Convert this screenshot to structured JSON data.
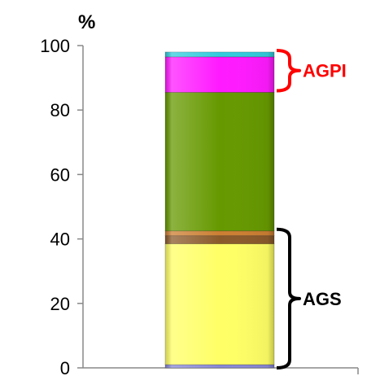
{
  "chart_data": {
    "type": "bar",
    "stacked": true,
    "categories": [
      ""
    ],
    "series": [
      {
        "values": [
          1
        ],
        "color": "#8a8ad8"
      },
      {
        "values": [
          37.5
        ],
        "color": "#ffff66"
      },
      {
        "values": [
          2.5
        ],
        "color": "#8b5a2b"
      },
      {
        "values": [
          1.5
        ],
        "color": "#cc7f33"
      },
      {
        "values": [
          43
        ],
        "color": "#669900"
      },
      {
        "values": [
          11
        ],
        "color": "#ff1aff"
      },
      {
        "values": [
          1.5
        ],
        "color": "#33ccdd"
      }
    ],
    "title": "",
    "xlabel": "",
    "ylabel": "%",
    "ylim": [
      0,
      100
    ],
    "yticks": [
      "0",
      "20",
      "40",
      "60",
      "80",
      "100"
    ],
    "grid": false,
    "annotations": [
      {
        "text": "AGPI",
        "range": [
          86,
          98.5
        ],
        "color": "#ff0000"
      },
      {
        "text": "AGS",
        "range": [
          0,
          43
        ],
        "color": "#000000"
      }
    ]
  }
}
